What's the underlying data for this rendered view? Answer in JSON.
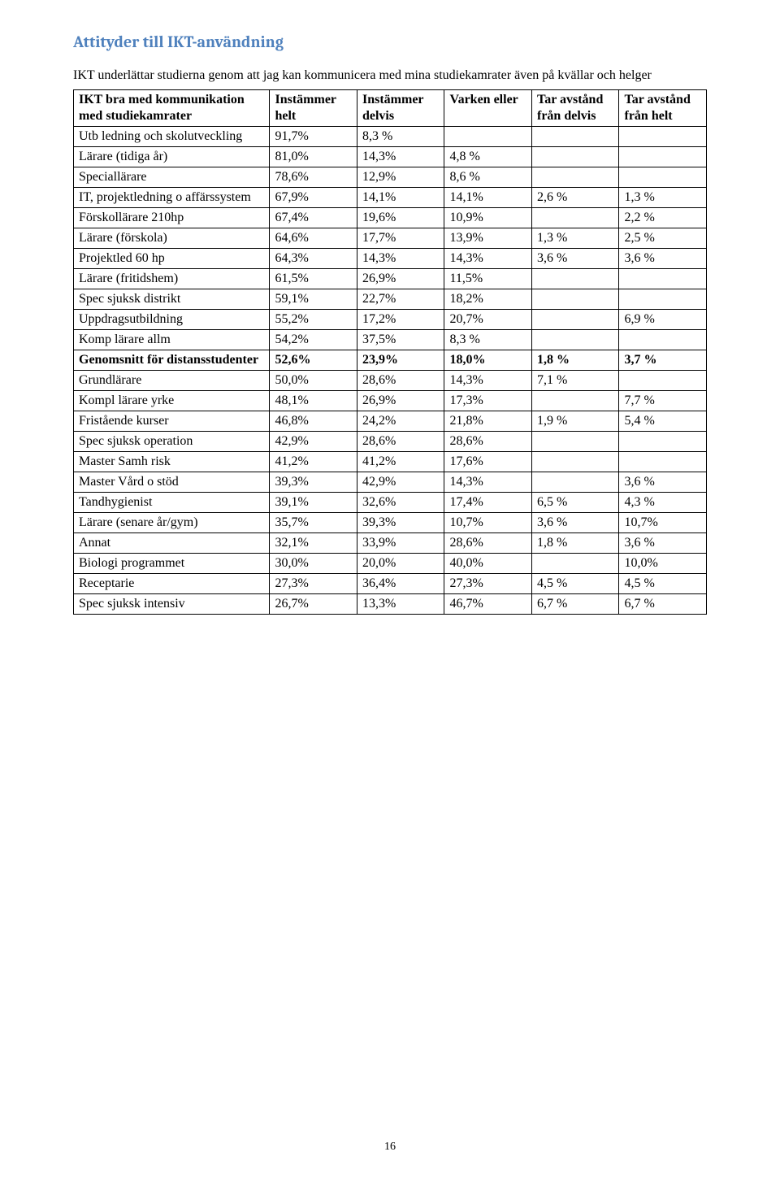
{
  "page": {
    "section_title": "Attityder till IKT-användning",
    "intro": "IKT underlättar studierna genom att jag kan kommunicera med mina studiekamrater även på kvällar och helger",
    "page_number": "16"
  },
  "table": {
    "header": {
      "row_label": "IKT bra med kommunikation med studiekamrater",
      "c1": "Instämmer helt",
      "c2": "Instämmer delvis",
      "c3": "Varken eller",
      "c4": "Tar avstånd från delvis",
      "c5": "Tar avstånd från helt"
    },
    "rows": [
      {
        "label": "Utb ledning och skolutveckling",
        "v": [
          "91,7%",
          "8,3 %",
          "",
          "",
          ""
        ],
        "bold": false
      },
      {
        "label": "Lärare (tidiga år)",
        "v": [
          "81,0%",
          "14,3%",
          "4,8 %",
          "",
          ""
        ],
        "bold": false
      },
      {
        "label": "Speciallärare",
        "v": [
          "78,6%",
          "12,9%",
          "8,6 %",
          "",
          ""
        ],
        "bold": false
      },
      {
        "label": "IT, projektledning o affärssystem",
        "v": [
          "67,9%",
          "14,1%",
          "14,1%",
          "2,6 %",
          "1,3 %"
        ],
        "bold": false
      },
      {
        "label": "Förskollärare 210hp",
        "v": [
          "67,4%",
          "19,6%",
          "10,9%",
          "",
          "2,2 %"
        ],
        "bold": false
      },
      {
        "label": "Lärare (förskola)",
        "v": [
          "64,6%",
          "17,7%",
          "13,9%",
          "1,3 %",
          "2,5 %"
        ],
        "bold": false
      },
      {
        "label": "Projektled 60 hp",
        "v": [
          "64,3%",
          "14,3%",
          "14,3%",
          "3,6 %",
          "3,6 %"
        ],
        "bold": false
      },
      {
        "label": "Lärare (fritidshem)",
        "v": [
          "61,5%",
          "26,9%",
          "11,5%",
          "",
          ""
        ],
        "bold": false
      },
      {
        "label": "Spec sjuksk distrikt",
        "v": [
          "59,1%",
          "22,7%",
          "18,2%",
          "",
          ""
        ],
        "bold": false
      },
      {
        "label": "Uppdragsutbildning",
        "v": [
          "55,2%",
          "17,2%",
          "20,7%",
          "",
          "6,9 %"
        ],
        "bold": false
      },
      {
        "label": "Komp lärare allm",
        "v": [
          "54,2%",
          "37,5%",
          "8,3 %",
          "",
          ""
        ],
        "bold": false
      },
      {
        "label": "Genomsnitt för distansstudenter",
        "v": [
          "52,6%",
          "23,9%",
          "18,0%",
          "1,8 %",
          "3,7 %"
        ],
        "bold": true
      },
      {
        "label": "Grundlärare",
        "v": [
          "50,0%",
          "28,6%",
          "14,3%",
          "7,1 %",
          ""
        ],
        "bold": false
      },
      {
        "label": "Kompl lärare yrke",
        "v": [
          "48,1%",
          "26,9%",
          "17,3%",
          "",
          "7,7 %"
        ],
        "bold": false
      },
      {
        "label": "Fristående kurser",
        "v": [
          "46,8%",
          "24,2%",
          "21,8%",
          "1,9 %",
          "5,4 %"
        ],
        "bold": false
      },
      {
        "label": "Spec sjuksk operation",
        "v": [
          "42,9%",
          "28,6%",
          "28,6%",
          "",
          ""
        ],
        "bold": false
      },
      {
        "label": "Master Samh risk",
        "v": [
          "41,2%",
          "41,2%",
          "17,6%",
          "",
          ""
        ],
        "bold": false
      },
      {
        "label": "Master Vård o stöd",
        "v": [
          "39,3%",
          "42,9%",
          "14,3%",
          "",
          "3,6 %"
        ],
        "bold": false
      },
      {
        "label": "Tandhygienist",
        "v": [
          "39,1%",
          "32,6%",
          "17,4%",
          "6,5 %",
          "4,3 %"
        ],
        "bold": false
      },
      {
        "label": "Lärare (senare år/gym)",
        "v": [
          "35,7%",
          "39,3%",
          "10,7%",
          "3,6 %",
          "10,7%"
        ],
        "bold": false
      },
      {
        "label": "Annat",
        "v": [
          "32,1%",
          "33,9%",
          "28,6%",
          "1,8 %",
          "3,6 %"
        ],
        "bold": false
      },
      {
        "label": "Biologi programmet",
        "v": [
          "30,0%",
          "20,0%",
          "40,0%",
          "",
          "10,0%"
        ],
        "bold": false
      },
      {
        "label": "Receptarie",
        "v": [
          "27,3%",
          "36,4%",
          "27,3%",
          "4,5 %",
          "4,5 %"
        ],
        "bold": false
      },
      {
        "label": "Spec sjuksk intensiv",
        "v": [
          "26,7%",
          "13,3%",
          "46,7%",
          "6,7 %",
          "6,7 %"
        ],
        "bold": false
      }
    ]
  },
  "colors": {
    "heading": "#4f81bd",
    "text": "#000000",
    "border": "#000000",
    "background": "#ffffff"
  }
}
